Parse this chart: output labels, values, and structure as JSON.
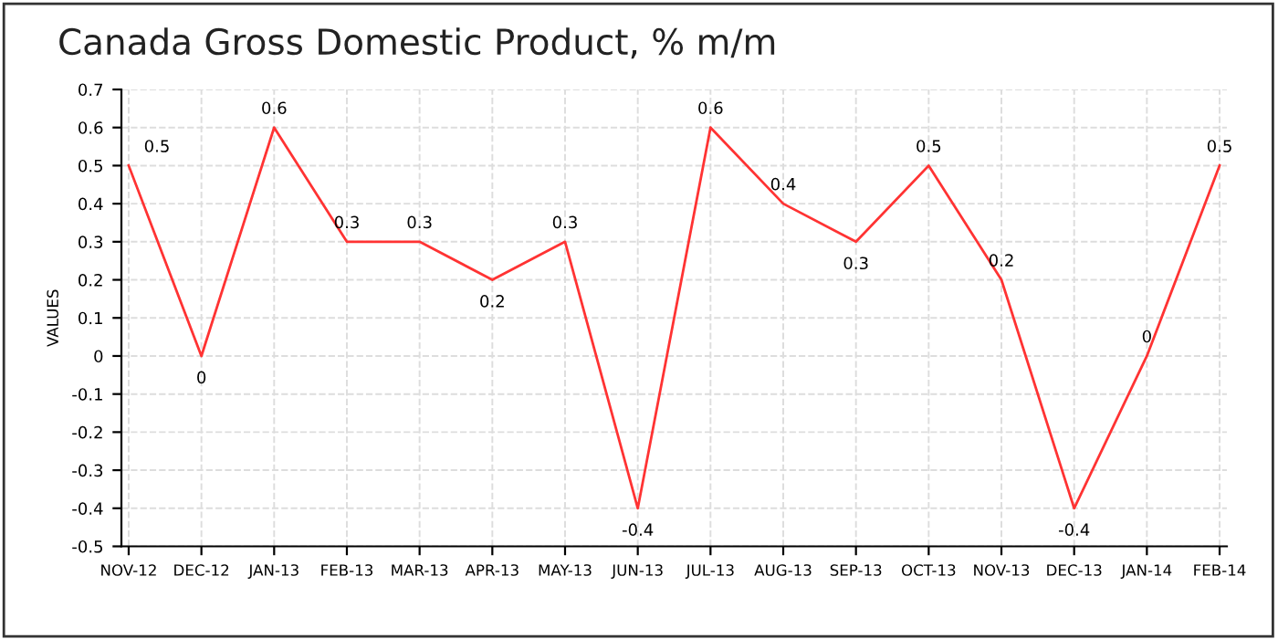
{
  "chart_data": {
    "type": "line",
    "title": "Canada Gross Domestic Product, % m/m",
    "ylabel": "VALUES",
    "categories": [
      "NOV-12",
      "DEC-12",
      "JAN-13",
      "FEB-13",
      "MAR-13",
      "APR-13",
      "MAY-13",
      "JUN-13",
      "JUL-13",
      "AUG-13",
      "SEP-13",
      "OCT-13",
      "NOV-13",
      "DEC-13",
      "JAN-14",
      "FEB-14"
    ],
    "series": [
      {
        "color": "#ff3333",
        "values": [
          0.5,
          0,
          0.6,
          0.3,
          0.3,
          0.2,
          0.3,
          -0.4,
          0.6,
          0.4,
          0.3,
          0.5,
          0.2,
          -0.4,
          0,
          0.5
        ]
      }
    ],
    "ylim": [
      -0.5,
      0.7
    ],
    "yticks": [
      -0.5,
      -0.4,
      -0.3,
      -0.2,
      -0.1,
      0,
      0.1,
      0.2,
      0.3,
      0.4,
      0.5,
      0.6,
      0.7
    ],
    "grid": true,
    "data_labels": true,
    "marker": "none",
    "line_style": "solid"
  }
}
